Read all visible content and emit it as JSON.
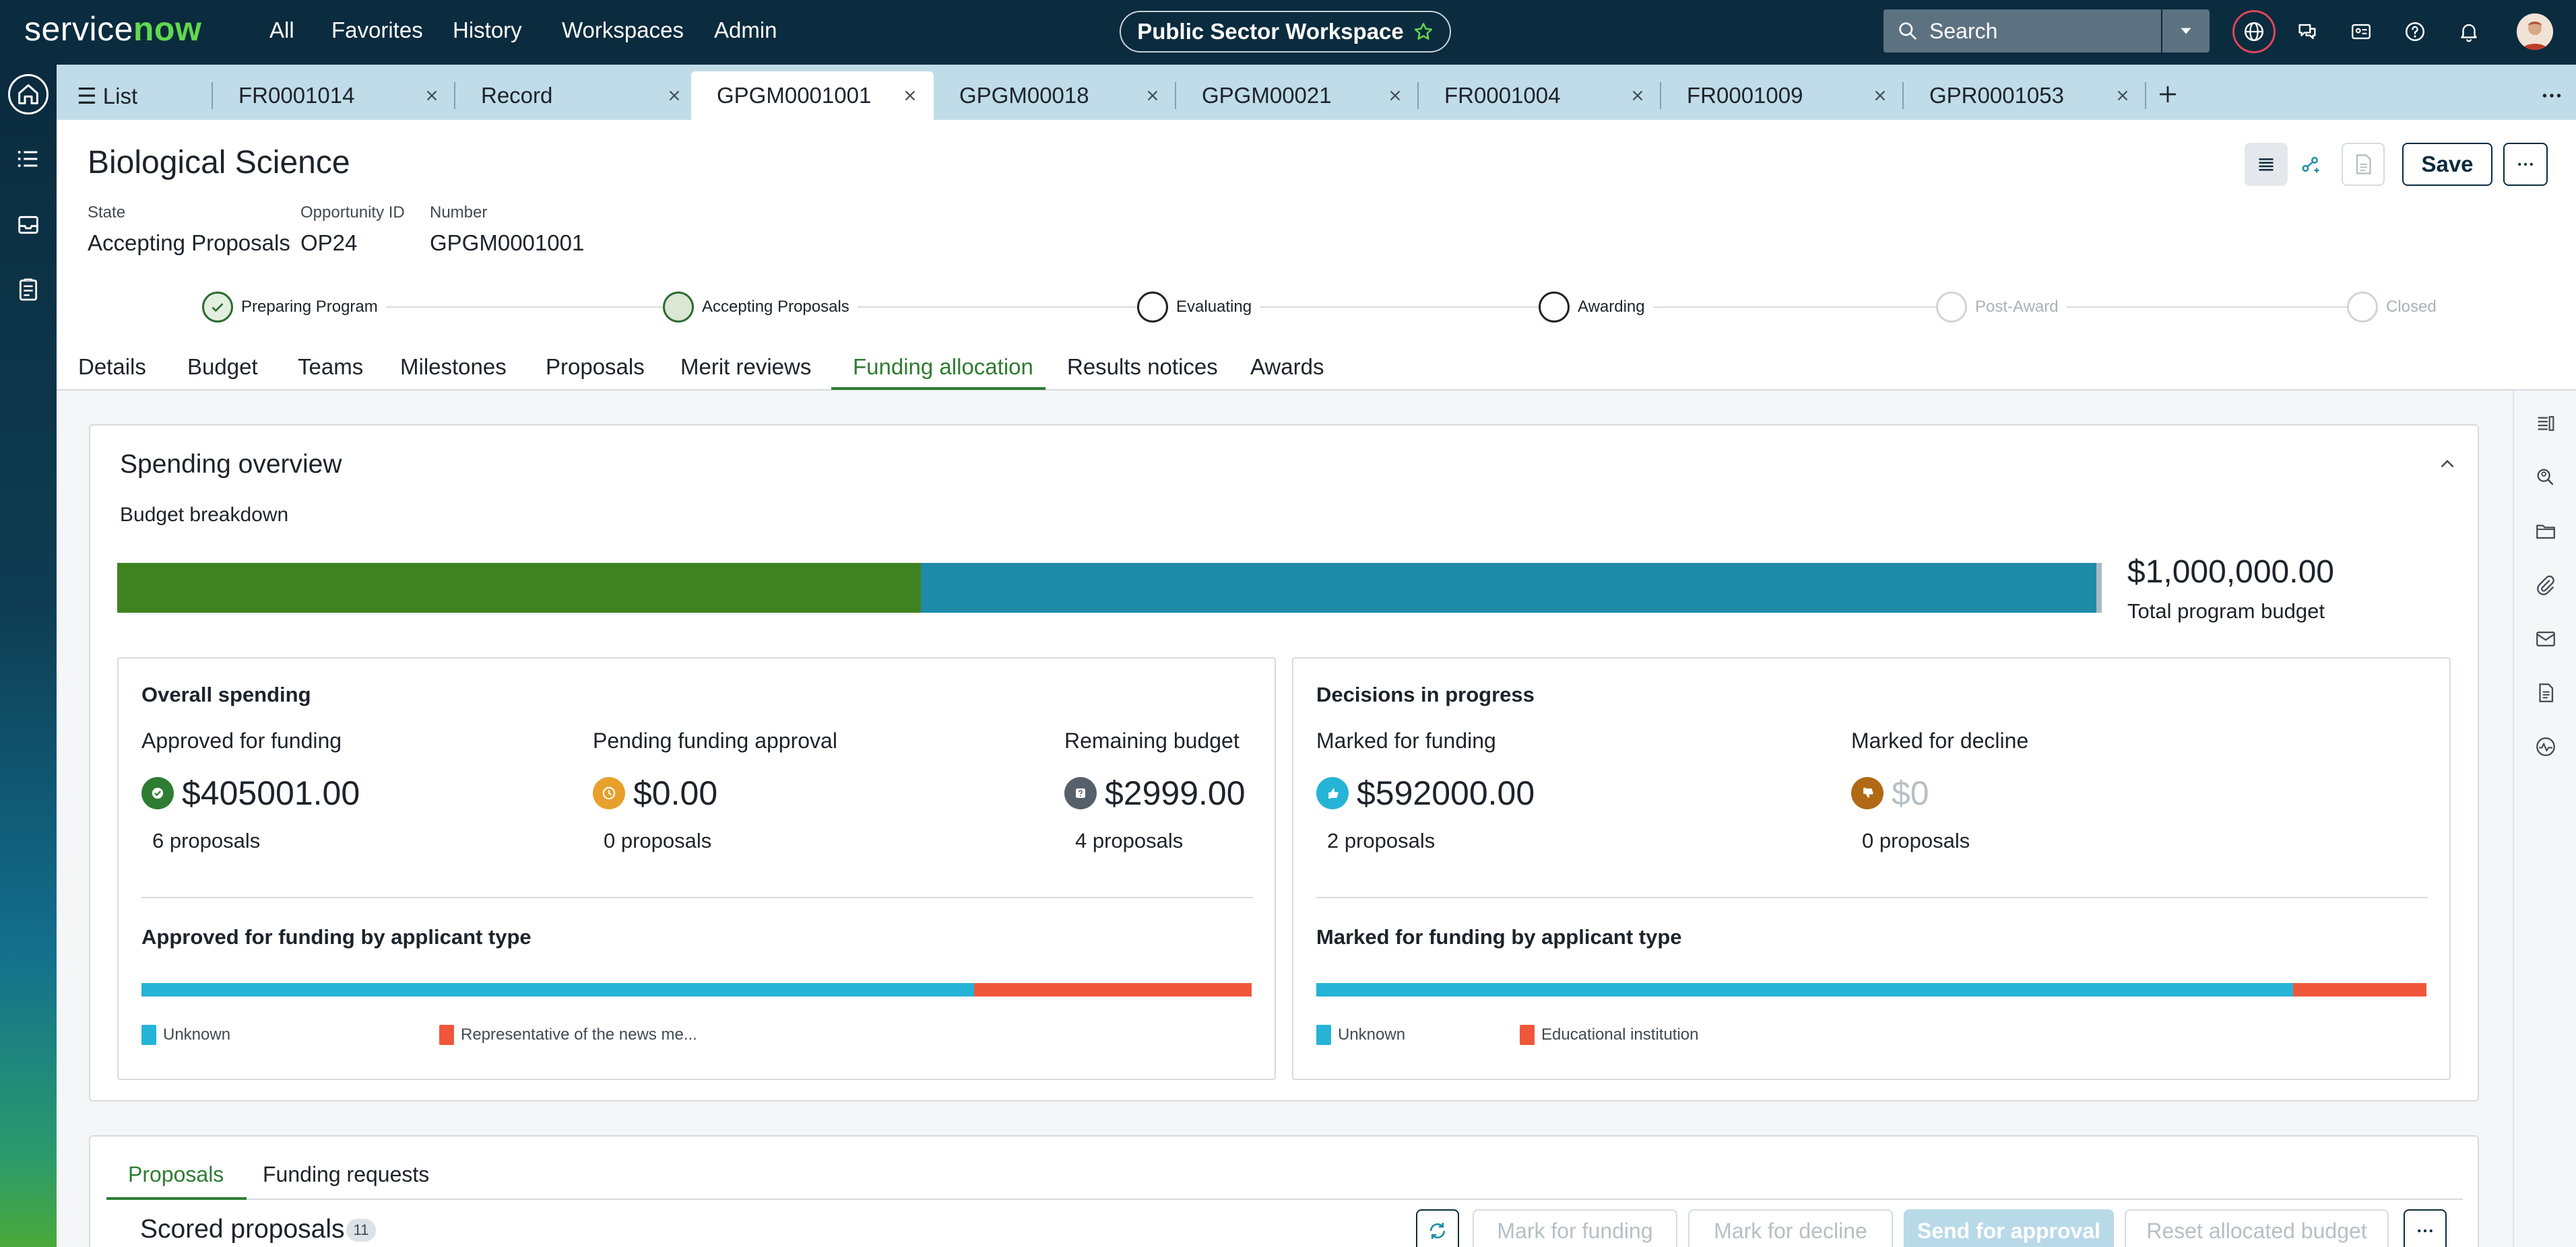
{
  "topnav": {
    "logo_service": "service",
    "logo_now": "now",
    "links": [
      "All",
      "Favorites",
      "History",
      "Workspaces",
      "Admin"
    ],
    "workspace": "Public Sector Workspace",
    "search_placeholder": "Search"
  },
  "tabs": [
    {
      "label": "List",
      "closable": false
    },
    {
      "label": "FR0001014",
      "closable": true
    },
    {
      "label": "Record",
      "closable": true
    },
    {
      "label": "GPGM0001001",
      "closable": true,
      "active": true
    },
    {
      "label": "GPGM00018",
      "closable": true
    },
    {
      "label": "GPGM00021",
      "closable": true
    },
    {
      "label": "FR0001004",
      "closable": true
    },
    {
      "label": "FR0001009",
      "closable": true
    },
    {
      "label": "GPR0001053",
      "closable": true
    }
  ],
  "record": {
    "title": "Biological Science",
    "save_label": "Save",
    "fields": [
      {
        "label": "State",
        "value": "Accepting Proposals"
      },
      {
        "label": "Opportunity ID",
        "value": "OP24"
      },
      {
        "label": "Number",
        "value": "GPGM0001001"
      }
    ]
  },
  "stages": [
    {
      "label": "Preparing Program",
      "status": "done"
    },
    {
      "label": "Accepting Proposals",
      "status": "current"
    },
    {
      "label": "Evaluating",
      "status": "upcoming"
    },
    {
      "label": "Awarding",
      "status": "upcoming"
    },
    {
      "label": "Post-Award",
      "status": "future"
    },
    {
      "label": "Closed",
      "status": "future"
    }
  ],
  "record_tabs": [
    "Details",
    "Budget",
    "Teams",
    "Milestones",
    "Proposals",
    "Merit reviews",
    "Funding allocation",
    "Results notices",
    "Awards"
  ],
  "active_record_tab": "Funding allocation",
  "spending": {
    "title": "Spending overview",
    "breakdown_label": "Budget breakdown",
    "bar_fraction_approved": 0.405,
    "total_amount": "$1,000,000.00",
    "total_label": "Total program budget",
    "overall": {
      "title": "Overall spending",
      "approved": {
        "label": "Approved for funding",
        "value": "$405001.00",
        "count": "6 proposals"
      },
      "pending": {
        "label": "Pending funding approval",
        "value": "$0.00",
        "count": "0 proposals"
      },
      "remaining": {
        "label": "Remaining budget",
        "value": "$2999.00",
        "count": "4 proposals"
      },
      "by_type_title": "Approved for funding by applicant type",
      "split_fraction_second": 0.25,
      "legend": [
        "Unknown",
        "Representative of the news me..."
      ]
    },
    "decisions": {
      "title": "Decisions in progress",
      "marked": {
        "label": "Marked for funding",
        "value": "$592000.00",
        "count": "2 proposals"
      },
      "declined": {
        "label": "Marked for decline",
        "value": "$0",
        "count": "0 proposals"
      },
      "by_type_title": "Marked for funding by applicant type",
      "split_fraction_second": 0.12,
      "legend": [
        "Unknown",
        "Educational institution"
      ]
    }
  },
  "proposals": {
    "tabs": [
      "Proposals",
      "Funding requests"
    ],
    "scored_title": "Scored proposals",
    "scored_count": "11",
    "actions": [
      "Mark for funding",
      "Mark for decline",
      "Send for approval",
      "Reset allocated budget"
    ]
  },
  "colors": {
    "nav": "#0b2b3e",
    "accent_green": "#2e7d32",
    "bar_green": "#3f8220",
    "bar_blue": "#1e8ba8",
    "series_unknown": "#26b4d6",
    "series_other": "#f0573a"
  }
}
